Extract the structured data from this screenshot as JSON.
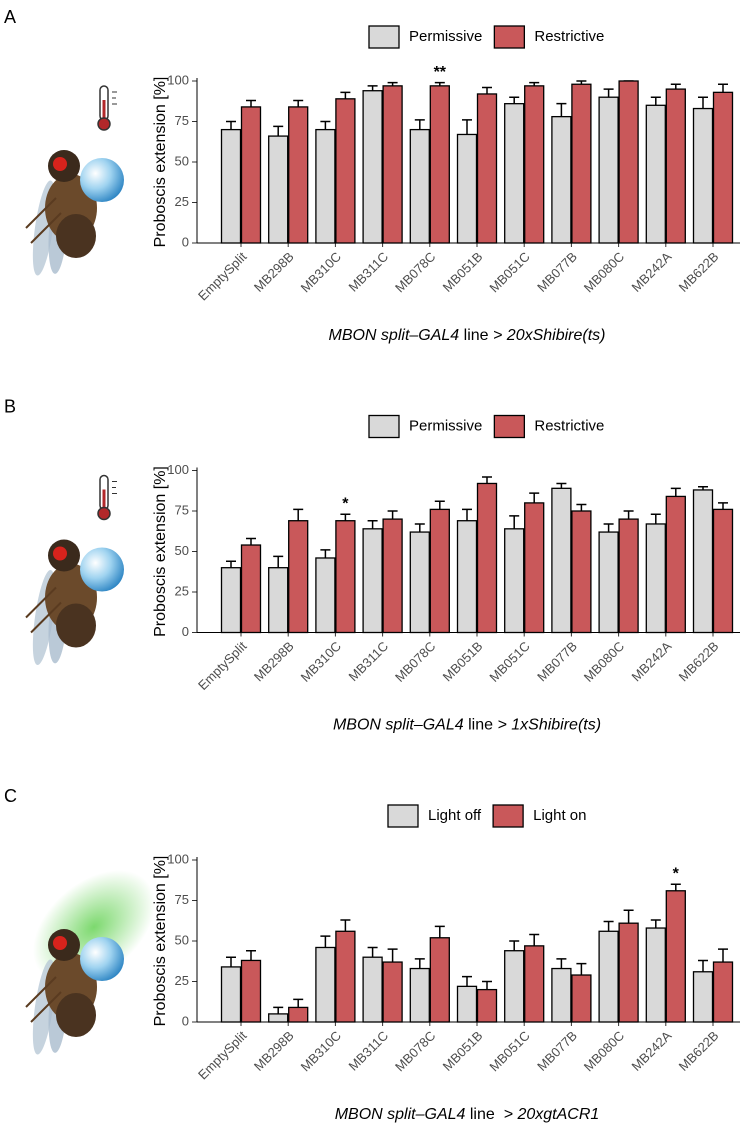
{
  "chart_data": [
    {
      "type": "bar",
      "panel": "A",
      "ylabel": "Proboscis extension [%]",
      "xlabel": [
        {
          "text": "MBON split–GAL4",
          "italic": true
        },
        {
          "text": " line ",
          "italic": false
        },
        {
          "text": "> 20xShibire(ts)",
          "italic": true
        }
      ],
      "categories": [
        "EmptySplit",
        "MB298B",
        "MB310C",
        "MB311C",
        "MB078C",
        "MB051B",
        "MB051C",
        "MB077B",
        "MB080C",
        "MB242A",
        "MB622B"
      ],
      "series": [
        {
          "name": "Permissive",
          "color": "#d9d9d9",
          "values": [
            70,
            66,
            70,
            94,
            70,
            67,
            86,
            78,
            90,
            85,
            83
          ],
          "errors": [
            5,
            6,
            5,
            3,
            6,
            9,
            4,
            8,
            5,
            5,
            7
          ]
        },
        {
          "name": "Restrictive",
          "color": "#c9585a",
          "values": [
            84,
            84,
            89,
            97,
            97,
            92,
            97,
            98,
            100,
            95,
            93
          ],
          "errors": [
            4,
            4,
            4,
            2,
            2,
            4,
            2,
            2,
            0,
            3,
            5
          ]
        }
      ],
      "annotations": [
        {
          "text": "**",
          "category": "MB078C",
          "series": "Restrictive"
        }
      ],
      "ylim": [
        0,
        100
      ],
      "yticks": [
        0,
        25,
        50,
        75,
        100
      ],
      "legend": "top",
      "stimulus": "temperature"
    },
    {
      "type": "bar",
      "panel": "B",
      "ylabel": "Proboscis extension [%]",
      "xlabel": [
        {
          "text": "MBON split–GAL4",
          "italic": true
        },
        {
          "text": " line ",
          "italic": false
        },
        {
          "text": "> 1xShibire(ts)",
          "italic": true
        }
      ],
      "categories": [
        "EmptySplit",
        "MB298B",
        "MB310C",
        "MB311C",
        "MB078C",
        "MB051B",
        "MB051C",
        "MB077B",
        "MB080C",
        "MB242A",
        "MB622B"
      ],
      "series": [
        {
          "name": "Permissive",
          "color": "#d9d9d9",
          "values": [
            40,
            40,
            46,
            64,
            62,
            69,
            64,
            89,
            62,
            67,
            88
          ],
          "errors": [
            4,
            7,
            5,
            5,
            5,
            7,
            8,
            3,
            5,
            6,
            2
          ]
        },
        {
          "name": "Restrictive",
          "color": "#c9585a",
          "values": [
            54,
            69,
            69,
            70,
            76,
            92,
            80,
            75,
            70,
            84,
            76
          ],
          "errors": [
            4,
            7,
            4,
            5,
            5,
            4,
            6,
            4,
            5,
            5,
            4
          ]
        }
      ],
      "annotations": [
        {
          "text": "*",
          "category": "MB310C",
          "series": "Restrictive"
        }
      ],
      "ylim": [
        0,
        100
      ],
      "yticks": [
        0,
        25,
        50,
        75,
        100
      ],
      "legend": "top",
      "stimulus": "temperature"
    },
    {
      "type": "bar",
      "panel": "C",
      "ylabel": "Proboscis extension [%]",
      "xlabel": [
        {
          "text": "MBON split–GAL4",
          "italic": true
        },
        {
          "text": " line  ",
          "italic": false
        },
        {
          "text": "> 20xgtACR1",
          "italic": true
        }
      ],
      "categories": [
        "EmptySplit",
        "MB298B",
        "MB310C",
        "MB311C",
        "MB078C",
        "MB051B",
        "MB051C",
        "MB077B",
        "MB080C",
        "MB242A",
        "MB622B"
      ],
      "series": [
        {
          "name": "Light off",
          "color": "#d9d9d9",
          "values": [
            34,
            5,
            46,
            40,
            33,
            22,
            44,
            33,
            56,
            58,
            31
          ],
          "errors": [
            6,
            4,
            7,
            6,
            6,
            6,
            6,
            6,
            6,
            5,
            7
          ]
        },
        {
          "name": "Light on",
          "color": "#c9585a",
          "values": [
            38,
            9,
            56,
            37,
            52,
            20,
            47,
            29,
            61,
            81,
            37
          ],
          "errors": [
            6,
            5,
            7,
            8,
            7,
            5,
            7,
            7,
            8,
            4,
            8
          ]
        }
      ],
      "annotations": [
        {
          "text": "*",
          "category": "MB242A",
          "series": "Light on"
        }
      ],
      "ylim": [
        0,
        100
      ],
      "yticks": [
        0,
        25,
        50,
        75,
        100
      ],
      "legend": "top",
      "stimulus": "light"
    }
  ]
}
